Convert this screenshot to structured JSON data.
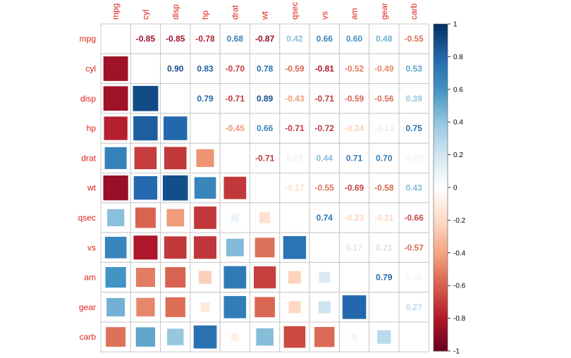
{
  "chart_data": {
    "type": "heatmap",
    "title": "",
    "variables": [
      "mpg",
      "cyl",
      "disp",
      "hp",
      "drat",
      "wt",
      "qsec",
      "vs",
      "am",
      "gear",
      "carb"
    ],
    "upper_display": "number",
    "lower_display": "square",
    "diagonal": "blank",
    "matrix": [
      [
        1.0,
        -0.85,
        -0.85,
        -0.78,
        0.68,
        -0.87,
        0.42,
        0.66,
        0.6,
        0.48,
        -0.55
      ],
      [
        -0.85,
        1.0,
        0.9,
        0.83,
        -0.7,
        0.78,
        -0.59,
        -0.81,
        -0.52,
        -0.49,
        0.53
      ],
      [
        -0.85,
        0.9,
        1.0,
        0.79,
        -0.71,
        0.89,
        -0.43,
        -0.71,
        -0.59,
        -0.56,
        0.39
      ],
      [
        -0.78,
        0.83,
        0.79,
        1.0,
        -0.45,
        0.66,
        -0.71,
        -0.72,
        -0.24,
        -0.13,
        0.75
      ],
      [
        0.68,
        -0.7,
        -0.71,
        -0.45,
        1.0,
        -0.71,
        0.09,
        0.44,
        0.71,
        0.7,
        -0.09
      ],
      [
        -0.87,
        0.78,
        0.89,
        0.66,
        -0.71,
        1.0,
        -0.17,
        -0.55,
        -0.69,
        -0.58,
        0.43
      ],
      [
        0.42,
        -0.59,
        -0.43,
        -0.71,
        0.09,
        -0.17,
        1.0,
        0.74,
        -0.23,
        -0.21,
        -0.66
      ],
      [
        0.66,
        -0.81,
        -0.71,
        -0.72,
        0.44,
        -0.55,
        0.74,
        1.0,
        0.17,
        0.21,
        -0.57
      ],
      [
        0.6,
        -0.52,
        -0.59,
        -0.24,
        0.71,
        -0.69,
        -0.23,
        0.17,
        1.0,
        0.79,
        0.06
      ],
      [
        0.48,
        -0.49,
        -0.56,
        -0.13,
        0.7,
        -0.58,
        -0.21,
        0.21,
        0.79,
        1.0,
        0.27
      ],
      [
        -0.55,
        0.53,
        0.39,
        0.75,
        -0.09,
        0.43,
        -0.66,
        -0.57,
        0.06,
        0.27,
        1.0
      ]
    ],
    "colorbar": {
      "range": [
        -1,
        1
      ],
      "ticks": [
        "1",
        "0.8",
        "0.6",
        "0.4",
        "0.2",
        "0",
        "-0.2",
        "-0.4",
        "-0.6",
        "-0.8",
        "-1"
      ],
      "palette": [
        "#67001F",
        "#B2182B",
        "#D6604D",
        "#F4A582",
        "#FDDBC7",
        "#FFFFFF",
        "#D1E5F0",
        "#92C5DE",
        "#4393C3",
        "#2166AC",
        "#053061"
      ]
    },
    "label_color": "#e0241b",
    "grid": true
  }
}
